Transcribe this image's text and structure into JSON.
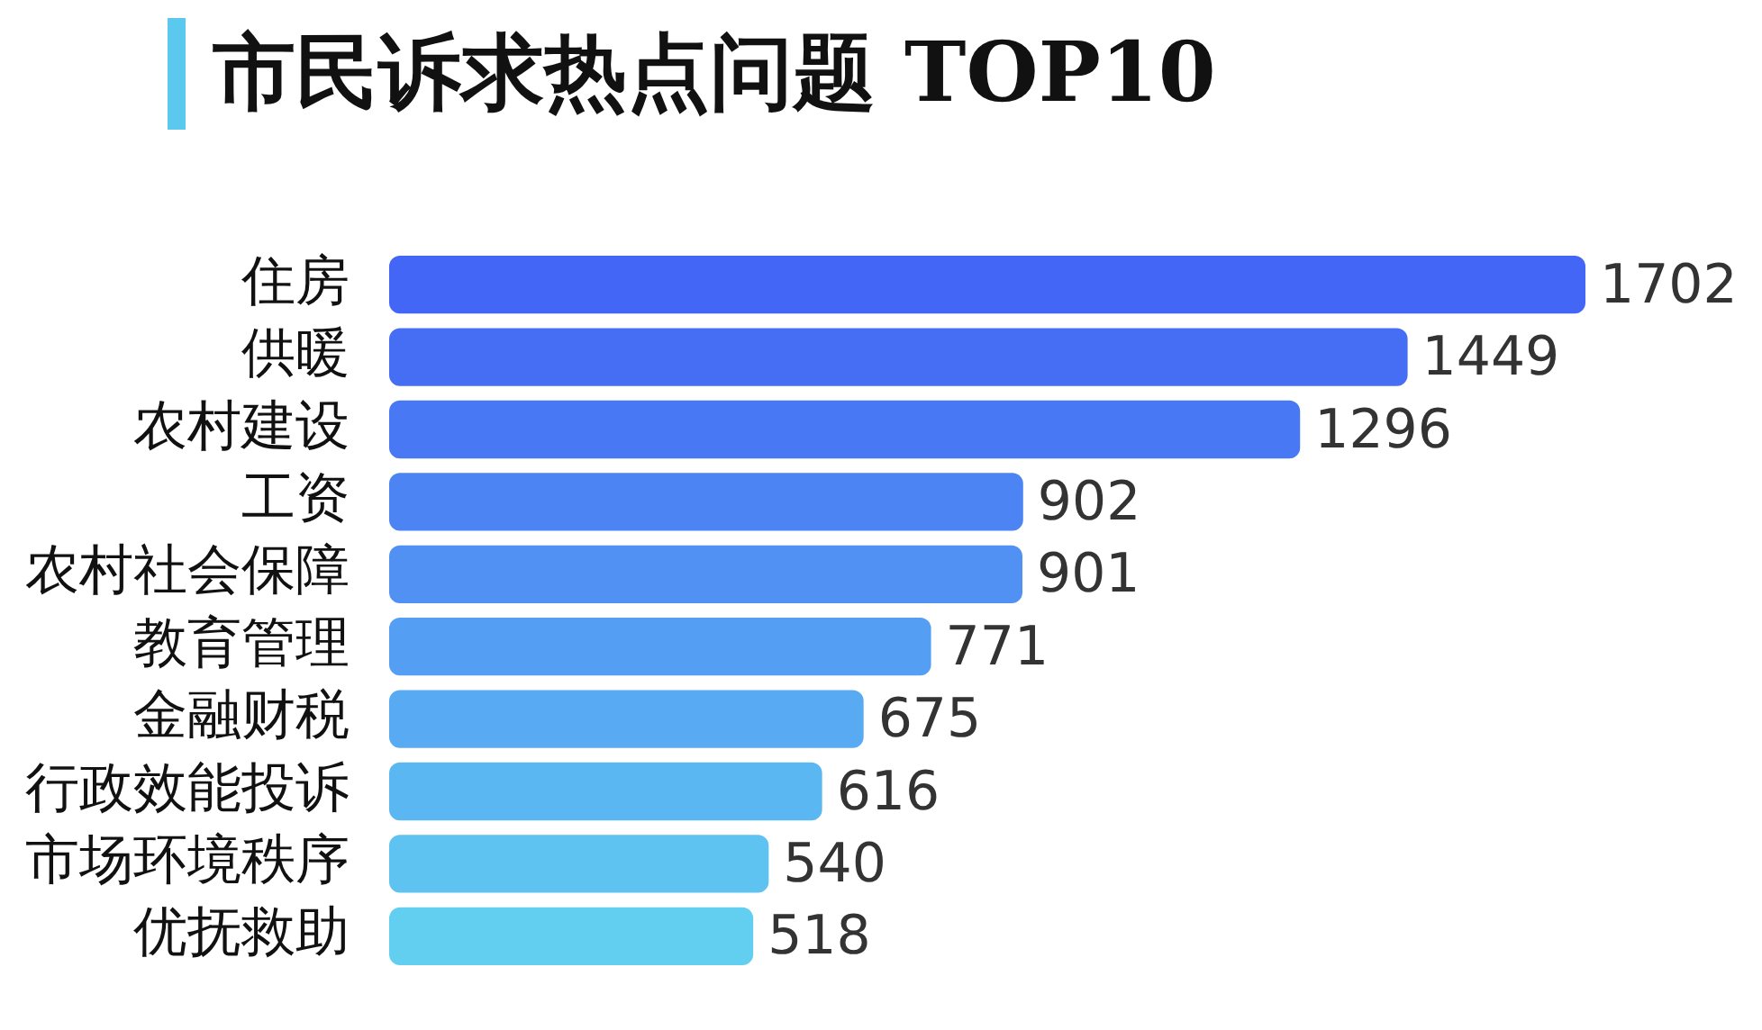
{
  "chart_data": {
    "type": "bar",
    "orientation": "horizontal",
    "title": "市民诉求热点问题 TOP10",
    "categories": [
      "住房",
      "供暖",
      "农村建设",
      "工资",
      "农村社会保障",
      "教育管理",
      "金融财税",
      "行政效能投诉",
      "市场环境秩序",
      "优抚救助"
    ],
    "values": [
      1702,
      1449,
      1296,
      902,
      901,
      771,
      675,
      616,
      540,
      518
    ],
    "colors": [
      "#4466f6",
      "#456ef5",
      "#4878f4",
      "#4c85f3",
      "#5091f3",
      "#549ef3",
      "#58aaf2",
      "#5bb7f2",
      "#5ec3f1",
      "#62cff1"
    ],
    "data_labels": true,
    "tick_labels": "y",
    "legend": false
  }
}
